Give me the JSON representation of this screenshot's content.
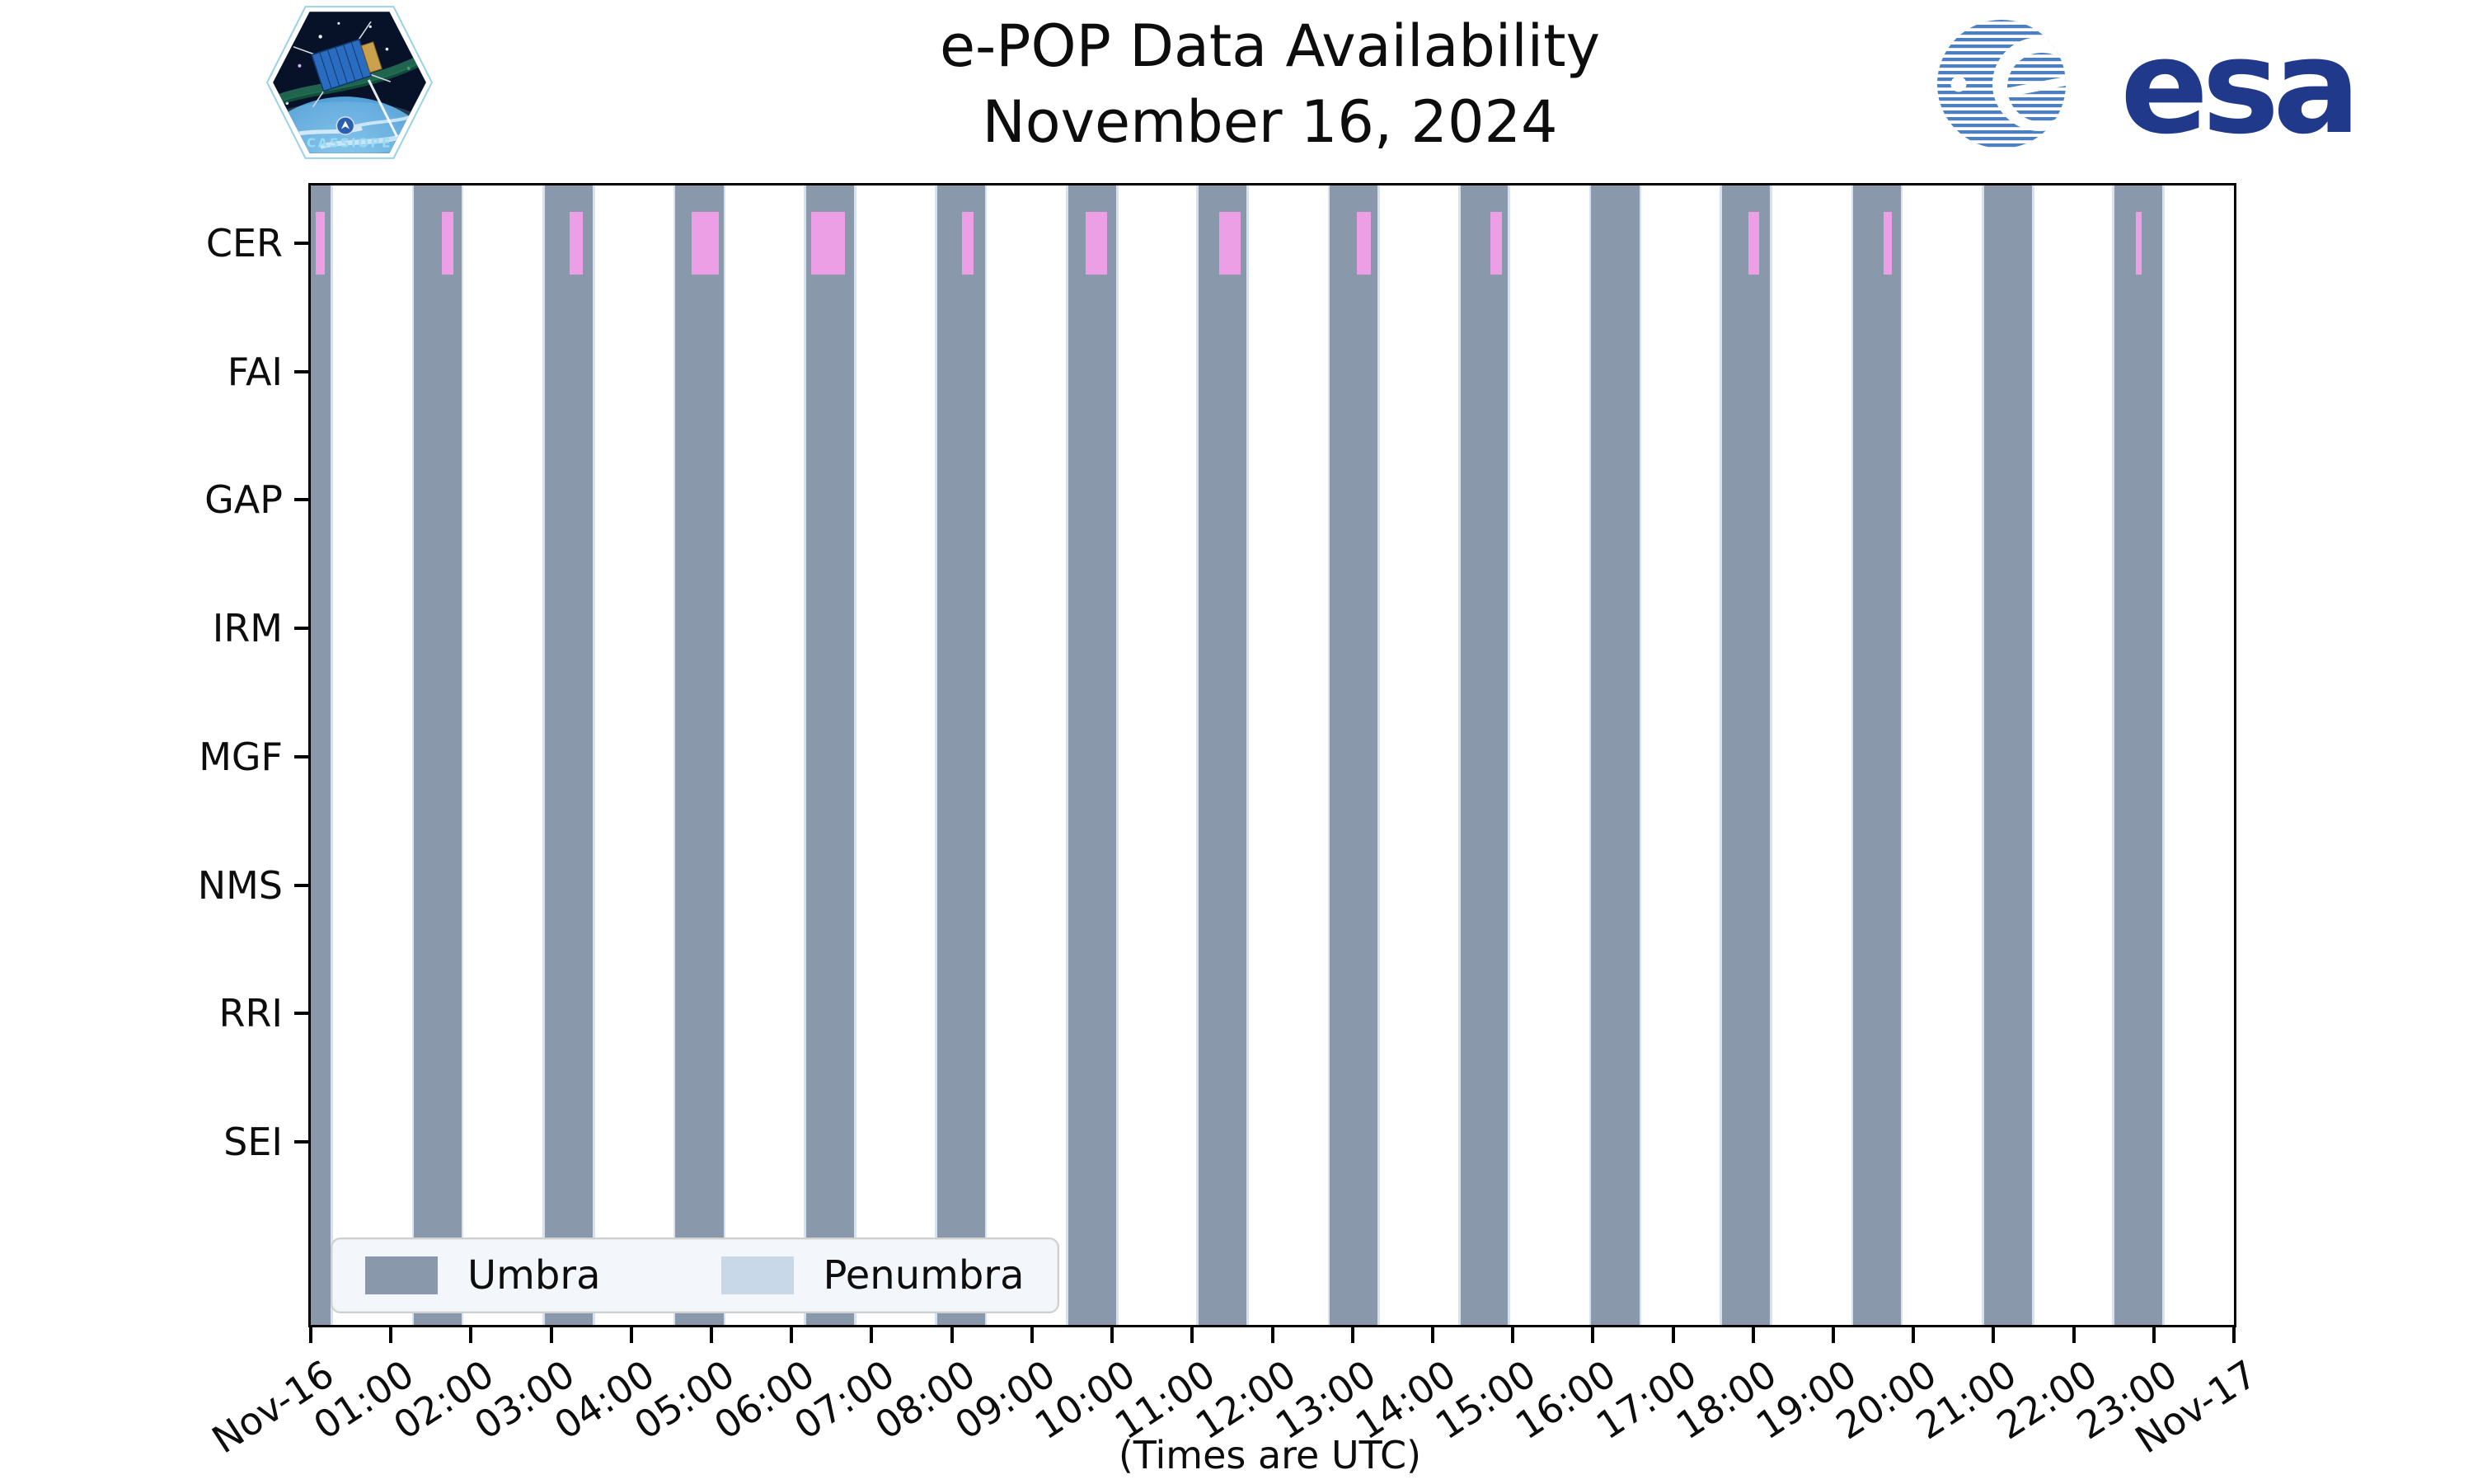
{
  "header": {
    "title_line1": "e-POP Data Availability",
    "title_line2": "November 16, 2024",
    "cassiope_label": "CASSIOPE",
    "esa_label": "esa"
  },
  "chart_data": {
    "type": "timeline",
    "title": "e-POP Data Availability November 16, 2024",
    "x_axis_note": "(Times are UTC)",
    "x_range_hours": [
      0,
      24
    ],
    "x_tick_labels": [
      "Nov-16",
      "01:00",
      "02:00",
      "03:00",
      "04:00",
      "05:00",
      "06:00",
      "07:00",
      "08:00",
      "09:00",
      "10:00",
      "11:00",
      "12:00",
      "13:00",
      "14:00",
      "15:00",
      "16:00",
      "17:00",
      "18:00",
      "19:00",
      "20:00",
      "21:00",
      "22:00",
      "23:00",
      "Nov-17"
    ],
    "instruments": [
      "CER",
      "FAI",
      "GAP",
      "IRM",
      "MGF",
      "NMS",
      "RRI",
      "SEI"
    ],
    "legend": [
      {
        "label": "Umbra",
        "color_key": "umbra"
      },
      {
        "label": "Penumbra",
        "color_key": "penumbra"
      }
    ],
    "umbra_windows_utc_hours": [
      [
        -0.35,
        0.25
      ],
      [
        1.29,
        1.88
      ],
      [
        2.92,
        3.52
      ],
      [
        4.55,
        5.15
      ],
      [
        6.18,
        6.78
      ],
      [
        7.82,
        8.41
      ],
      [
        9.45,
        10.05
      ],
      [
        11.08,
        11.68
      ],
      [
        12.72,
        13.31
      ],
      [
        14.35,
        14.94
      ],
      [
        15.98,
        16.58
      ],
      [
        17.61,
        18.21
      ],
      [
        19.25,
        19.84
      ],
      [
        20.88,
        21.48
      ],
      [
        22.51,
        23.11
      ]
    ],
    "penumbra_edge_hours": 0.028,
    "cer_data_windows_utc_hours": [
      [
        0.06,
        0.17
      ],
      [
        1.64,
        1.78
      ],
      [
        3.23,
        3.39
      ],
      [
        4.75,
        5.09
      ],
      [
        6.24,
        6.67
      ],
      [
        8.13,
        8.27
      ],
      [
        9.67,
        9.94
      ],
      [
        11.34,
        11.6
      ],
      [
        13.05,
        13.23
      ],
      [
        14.72,
        14.87
      ],
      [
        17.94,
        18.07
      ],
      [
        19.63,
        19.73
      ],
      [
        22.78,
        22.85
      ]
    ],
    "colors": {
      "umbra": "#8a98ab",
      "penumbra": "#c8d8e8",
      "penumbra_edge": "#d6e2ef",
      "cer_event": "#ec9fe5",
      "esa_navy": "#21398b",
      "esa_swirl": "#4c80c1"
    }
  }
}
